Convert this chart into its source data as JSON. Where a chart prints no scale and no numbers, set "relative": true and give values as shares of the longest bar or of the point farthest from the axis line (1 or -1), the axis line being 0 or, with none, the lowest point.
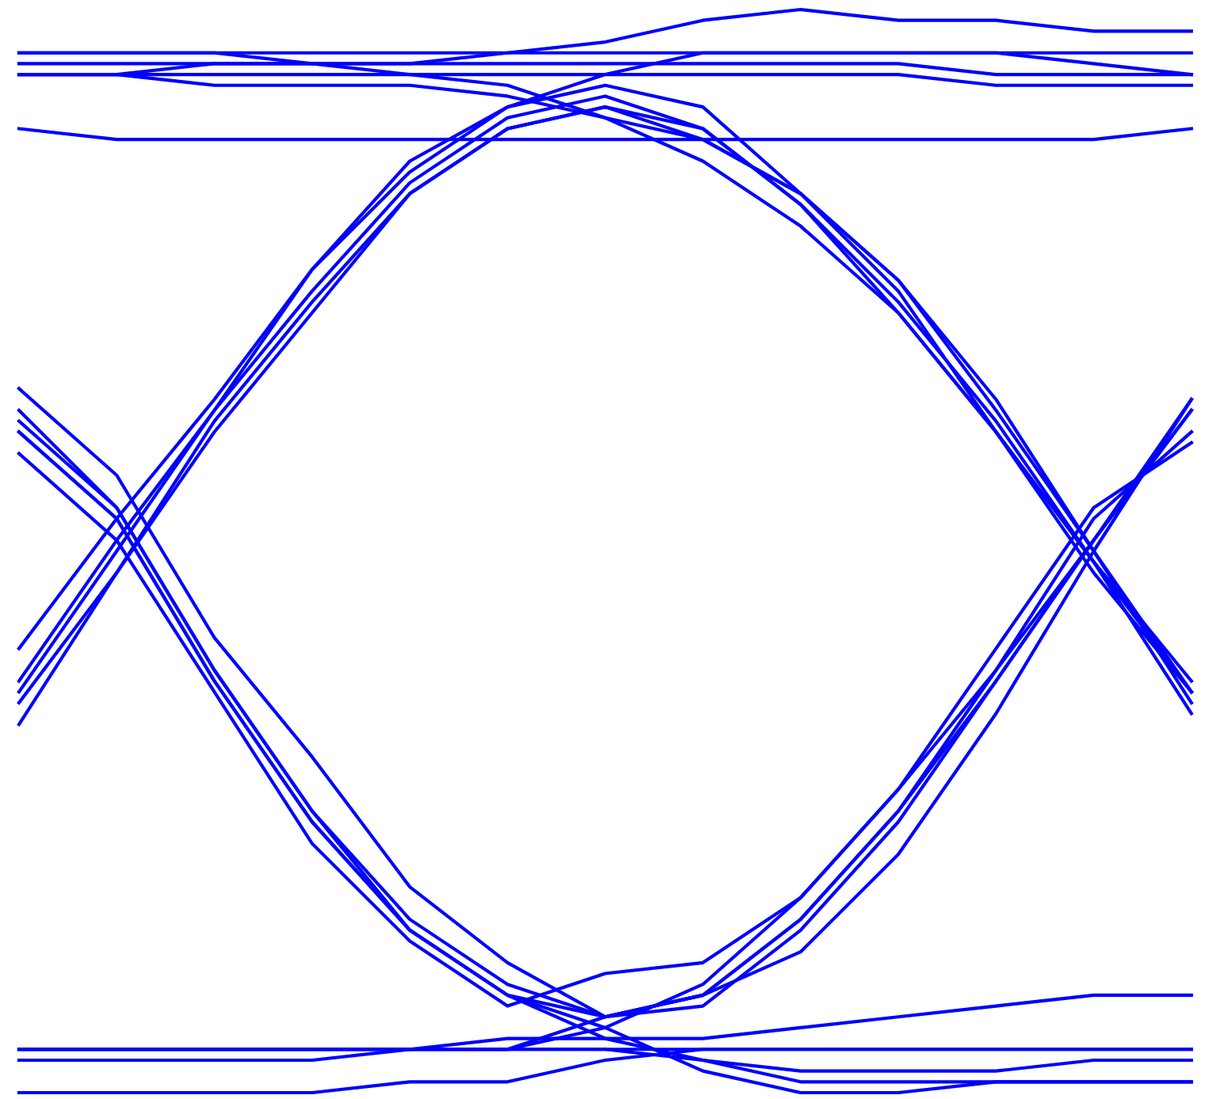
{
  "chart_data": {
    "type": "line",
    "relative": true,
    "categories": [
      null,
      null,
      null,
      null,
      null,
      null,
      null,
      null,
      null,
      null,
      null,
      null,
      null
    ],
    "series": [
      {
        "color": "#0000ff",
        "values": [
          0.65,
          0.57,
          0.42,
          0.31,
          0.19,
          0.12,
          0.07,
          0.09,
          0.13,
          0.22,
          0.35,
          0.5,
          0.64
        ]
      },
      {
        "color": "#0000ff",
        "values": [
          0.62,
          0.54,
          0.39,
          0.26,
          0.16,
          0.1,
          0.07,
          0.08,
          0.15,
          0.25,
          0.38,
          0.51,
          0.63
        ]
      },
      {
        "color": "#0000ff",
        "values": [
          0.61,
          0.53,
          0.38,
          0.25,
          0.15,
          0.09,
          0.07,
          0.09,
          0.16,
          0.26,
          0.39,
          0.53,
          0.61
        ]
      },
      {
        "color": "#0000ff",
        "values": [
          0.59,
          0.51,
          0.37,
          0.23,
          0.14,
          0.08,
          0.11,
          0.12,
          0.18,
          0.28,
          0.41,
          0.54,
          0.6
        ]
      },
      {
        "color": "#0000ff",
        "values": [
          0.41,
          0.53,
          0.64,
          0.76,
          0.86,
          0.91,
          0.93,
          0.91,
          0.83,
          0.75,
          0.63,
          0.5,
          0.36
        ]
      },
      {
        "color": "#0000ff",
        "values": [
          0.37,
          0.5,
          0.63,
          0.74,
          0.84,
          0.9,
          0.92,
          0.89,
          0.82,
          0.72,
          0.61,
          0.49,
          0.37
        ]
      },
      {
        "color": "#0000ff",
        "values": [
          0.34,
          0.48,
          0.61,
          0.72,
          0.83,
          0.89,
          0.91,
          0.88,
          0.83,
          0.74,
          0.61,
          0.48,
          0.37
        ]
      },
      {
        "color": "#0000ff",
        "values": [
          0.36,
          0.48,
          0.62,
          0.73,
          0.83,
          0.89,
          0.91,
          0.89,
          0.82,
          0.73,
          0.62,
          0.49,
          0.38
        ]
      },
      {
        "color": "#0000ff",
        "values": [
          0.96,
          0.96,
          0.96,
          0.95,
          0.94,
          0.93,
          0.9,
          0.86,
          0.8,
          0.72,
          0.61,
          0.49,
          0.35
        ]
      },
      {
        "color": "#0000ff",
        "values": [
          0.94,
          0.94,
          0.93,
          0.93,
          0.93,
          0.92,
          0.9,
          0.88,
          0.83,
          0.75,
          0.64,
          0.5,
          0.37
        ]
      },
      {
        "color": "#0000ff",
        "values": [
          0.04,
          0.04,
          0.04,
          0.04,
          0.04,
          0.04,
          0.06,
          0.1,
          0.18,
          0.28,
          0.39,
          0.51,
          0.64
        ]
      },
      {
        "color": "#0000ff",
        "values": [
          0.04,
          0.04,
          0.04,
          0.04,
          0.04,
          0.04,
          0.07,
          0.09,
          0.16,
          0.26,
          0.38,
          0.51,
          0.63
        ]
      },
      {
        "color": "#0000ff",
        "values": [
          0.61,
          0.53,
          0.38,
          0.25,
          0.15,
          0.09,
          0.06,
          0.02,
          0.0,
          0.0,
          0.01,
          0.01,
          0.01
        ]
      },
      {
        "color": "#0000ff",
        "values": [
          0.63,
          0.54,
          0.39,
          0.26,
          0.15,
          0.09,
          0.05,
          0.03,
          0.02,
          0.02,
          0.02,
          0.03,
          0.03
        ]
      },
      {
        "color": "#0000ff",
        "values": [
          0.38,
          0.51,
          0.63,
          0.76,
          0.85,
          0.91,
          0.94,
          0.96,
          0.96,
          0.96,
          0.96,
          0.95,
          0.94
        ]
      },
      {
        "color": "#0000ff",
        "values": [
          0.96,
          0.96,
          0.96,
          0.96,
          0.96,
          0.96,
          0.96,
          0.96,
          0.96,
          0.96,
          0.96,
          0.96,
          0.96
        ]
      },
      {
        "color": "#0000ff",
        "values": [
          0.95,
          0.95,
          0.95,
          0.95,
          0.95,
          0.95,
          0.95,
          0.95,
          0.95,
          0.95,
          0.94,
          0.94,
          0.94
        ]
      },
      {
        "color": "#0000ff",
        "values": [
          0.94,
          0.94,
          0.94,
          0.94,
          0.94,
          0.94,
          0.94,
          0.94,
          0.94,
          0.94,
          0.93,
          0.93,
          0.93
        ]
      },
      {
        "color": "#0000ff",
        "values": [
          0.89,
          0.88,
          0.88,
          0.88,
          0.88,
          0.88,
          0.88,
          0.88,
          0.88,
          0.88,
          0.88,
          0.88,
          0.89
        ]
      },
      {
        "color": "#0000ff",
        "values": [
          0.94,
          0.94,
          0.95,
          0.95,
          0.95,
          0.96,
          0.97,
          0.99,
          1.0,
          0.99,
          0.99,
          0.98,
          0.98
        ]
      },
      {
        "color": "#0000ff",
        "values": [
          0.04,
          0.04,
          0.04,
          0.04,
          0.04,
          0.05,
          0.05,
          0.05,
          0.06,
          0.07,
          0.08,
          0.09,
          0.09
        ]
      },
      {
        "color": "#0000ff",
        "values": [
          0.04,
          0.04,
          0.04,
          0.04,
          0.04,
          0.04,
          0.04,
          0.04,
          0.04,
          0.04,
          0.04,
          0.04,
          0.04
        ]
      },
      {
        "color": "#0000ff",
        "values": [
          0.0,
          0.0,
          0.0,
          0.0,
          0.01,
          0.01,
          0.03,
          0.04,
          0.04,
          0.04,
          0.04,
          0.04,
          0.04
        ]
      },
      {
        "color": "#0000ff",
        "values": [
          0.03,
          0.03,
          0.03,
          0.03,
          0.04,
          0.04,
          0.04,
          0.03,
          0.01,
          0.01,
          0.01,
          0.01,
          0.01
        ]
      }
    ]
  }
}
